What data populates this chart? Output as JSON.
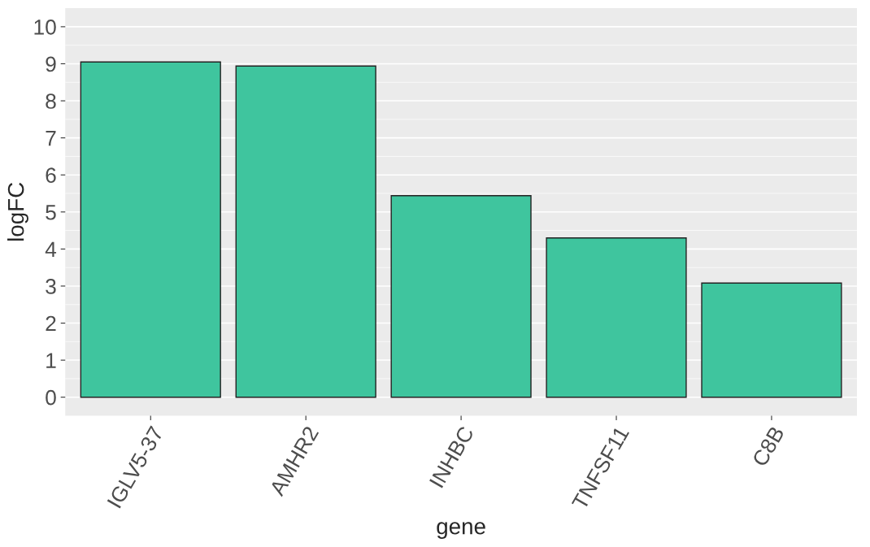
{
  "chart_data": {
    "type": "bar",
    "xlabel": "gene",
    "ylabel": "logFC",
    "categories": [
      "IGLV5-37",
      "AMHR2",
      "INHBC",
      "TNFSF11",
      "C8B"
    ],
    "values": [
      9.05,
      8.94,
      5.44,
      4.3,
      3.08
    ],
    "color": "#3fc59e",
    "ylim": [
      -0.5,
      10.5
    ],
    "yticks": [
      0,
      1,
      2,
      3,
      4,
      5,
      6,
      7,
      8,
      9,
      10
    ],
    "grid": "y",
    "legend": false
  }
}
